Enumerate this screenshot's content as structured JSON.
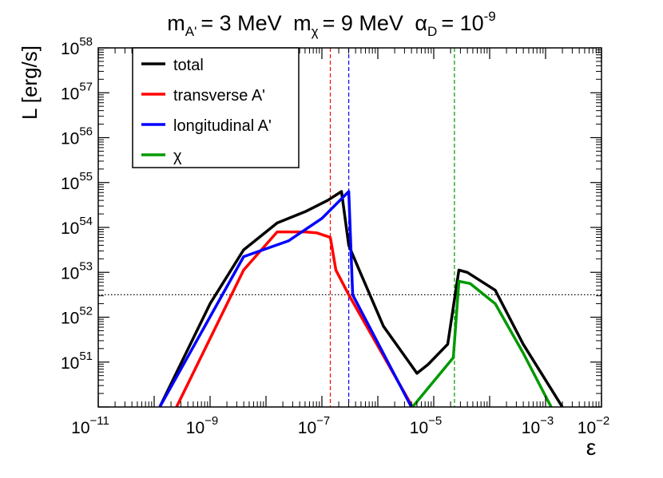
{
  "chart_data": {
    "type": "line",
    "title": {
      "m_label": "m",
      "m_A_sub": "A'",
      "m_A_value": "= 3 MeV",
      "m_chi_sub": "χ",
      "m_chi_value": "= 9 MeV",
      "alpha": "α",
      "alpha_sub": "D",
      "alpha_eq": "= 10",
      "alpha_exp": "-9"
    },
    "xlabel": "ε",
    "ylabel": "L [erg/s]",
    "xscale": "log",
    "yscale": "log",
    "xlim_log10": [
      -11,
      -2
    ],
    "ylim_log10": [
      50,
      58
    ],
    "x_ticks": [
      {
        "base": "10",
        "exp": "−11",
        "log": -11
      },
      {
        "base": "10",
        "exp": "−9",
        "log": -9
      },
      {
        "base": "10",
        "exp": "−7",
        "log": -7
      },
      {
        "base": "10",
        "exp": "−5",
        "log": -5
      },
      {
        "base": "10",
        "exp": "−3",
        "log": -3
      },
      {
        "base": "10",
        "exp": "−2",
        "log": -2
      }
    ],
    "y_ticks": [
      {
        "base": "10",
        "exp": "51",
        "log": 51
      },
      {
        "base": "10",
        "exp": "52",
        "log": 52
      },
      {
        "base": "10",
        "exp": "53",
        "log": 53
      },
      {
        "base": "10",
        "exp": "54",
        "log": 54
      },
      {
        "base": "10",
        "exp": "55",
        "log": 55
      },
      {
        "base": "10",
        "exp": "56",
        "log": 56
      },
      {
        "base": "10",
        "exp": "57",
        "log": 57
      },
      {
        "base": "10",
        "exp": "58",
        "log": 58
      }
    ],
    "legend_position": "top-left",
    "series": [
      {
        "name": "total",
        "color": "#000000",
        "points_log10": [
          [
            -9.9,
            50.0
          ],
          [
            -9.0,
            52.3
          ],
          [
            -8.4,
            53.5
          ],
          [
            -7.8,
            54.1
          ],
          [
            -7.3,
            54.35
          ],
          [
            -6.9,
            54.6
          ],
          [
            -6.65,
            54.8
          ],
          [
            -6.52,
            53.6
          ],
          [
            -6.35,
            53.1
          ],
          [
            -5.9,
            51.8
          ],
          [
            -5.3,
            50.75
          ],
          [
            -5.1,
            50.95
          ],
          [
            -4.75,
            51.4
          ],
          [
            -4.55,
            53.05
          ],
          [
            -4.4,
            53.0
          ],
          [
            -3.9,
            52.6
          ],
          [
            -3.4,
            51.4
          ],
          [
            -2.7,
            50.0
          ]
        ]
      },
      {
        "name": "transverse A'",
        "color": "#ff0000",
        "points_log10": [
          [
            -9.6,
            50.0
          ],
          [
            -8.4,
            53.05
          ],
          [
            -7.8,
            53.9
          ],
          [
            -7.3,
            53.9
          ],
          [
            -7.1,
            53.88
          ],
          [
            -6.85,
            53.78
          ],
          [
            -6.75,
            53.05
          ],
          [
            -6.52,
            52.5
          ],
          [
            -5.38,
            50.0
          ]
        ]
      },
      {
        "name": "longitudinal A'",
        "color": "#0000ff",
        "points_log10": [
          [
            -9.9,
            50.0
          ],
          [
            -8.4,
            53.35
          ],
          [
            -7.6,
            53.7
          ],
          [
            -7.0,
            54.2
          ],
          [
            -6.52,
            54.8
          ],
          [
            -6.45,
            52.5
          ],
          [
            -5.4,
            50.0
          ]
        ]
      },
      {
        "name": "χ",
        "color": "#009900",
        "points_log10": [
          [
            -5.38,
            50.0
          ],
          [
            -4.65,
            51.1
          ],
          [
            -4.55,
            52.8
          ],
          [
            -4.35,
            52.75
          ],
          [
            -3.9,
            52.3
          ],
          [
            -3.4,
            51.2
          ],
          [
            -2.9,
            50.0
          ]
        ]
      }
    ],
    "vertical_dashed_lines": [
      {
        "x_log10": -6.85,
        "color": "#ff0000"
      },
      {
        "x_log10": -6.52,
        "color": "#0000ff"
      },
      {
        "x_log10": -4.63,
        "color": "#009900"
      }
    ],
    "horizontal_dotted_line": {
      "y_log10": 52.5,
      "color": "#000000"
    }
  }
}
